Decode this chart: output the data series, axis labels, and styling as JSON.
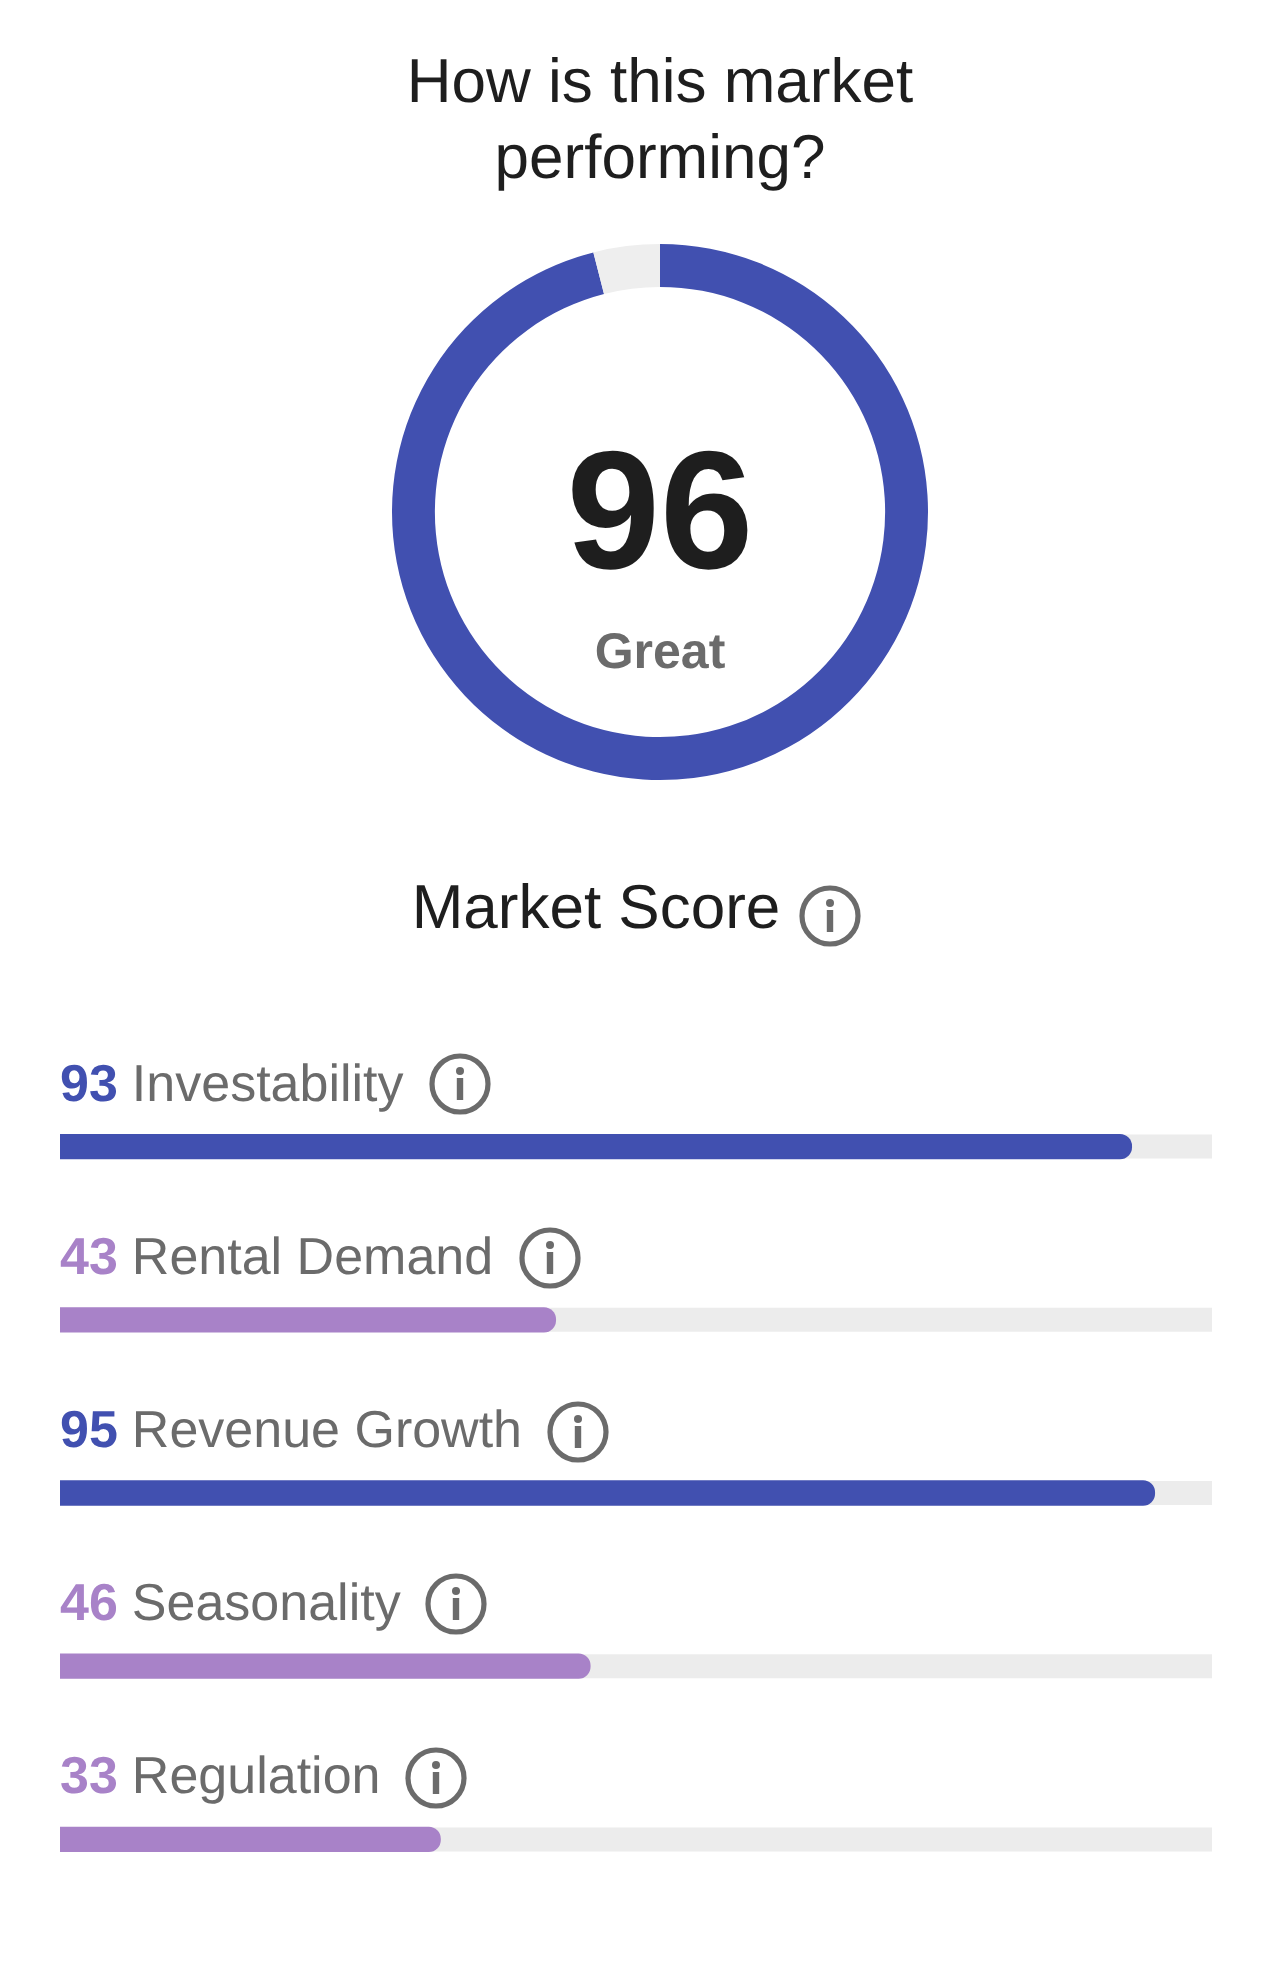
{
  "chart_data": [
    {
      "type": "donut",
      "title": "How is this market performing?",
      "xlabel": "Market Score",
      "categories": [
        null,
        null
      ],
      "values": [
        96,
        4
      ],
      "colors": [
        "#4150b0",
        "#eeeeee"
      ],
      "value_labels": [
        "96",
        null
      ],
      "annotations": [
        "Great"
      ],
      "legend": false
    },
    {
      "type": "bar",
      "orientation": "horizontal",
      "categories": [
        "Investability",
        "Rental Demand",
        "Revenue Growth",
        "Seasonality",
        "Regulation"
      ],
      "values": [
        93,
        43,
        95,
        46,
        33
      ],
      "colors": [
        "#4150b0",
        "#a882c8",
        "#4150b0",
        "#a882c8",
        "#a882c8"
      ],
      "xlim": [
        0,
        100
      ],
      "data_labels": true,
      "tick_labels": false,
      "legend": false
    }
  ]
}
